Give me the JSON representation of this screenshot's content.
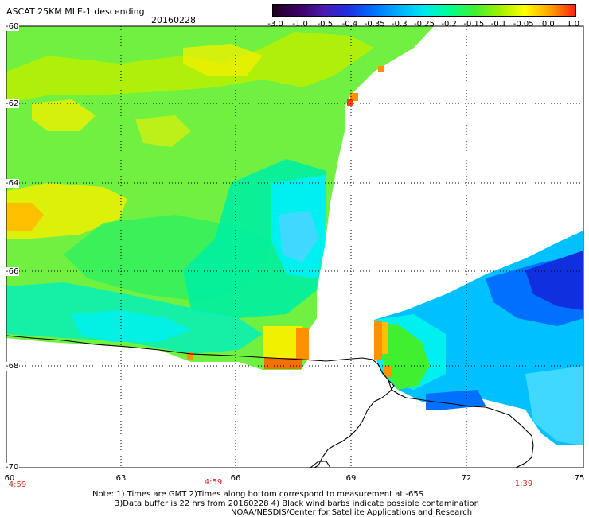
{
  "header": {
    "title": "ASCAT 25KM MLE-1 descending",
    "date": "20160228"
  },
  "colorbar": {
    "labels": [
      "-3.0",
      "-1.0",
      "-0.5",
      "-0.4",
      "-0.35",
      "-0.3",
      "-0.25",
      "-0.2",
      "-0.15",
      "-0.1",
      "-0.05",
      "0.0",
      "1.0"
    ],
    "colors": [
      "#200020",
      "#3a0060",
      "#4a1ab0",
      "#2030e0",
      "#0070ff",
      "#00b0ff",
      "#00e8f0",
      "#00ff90",
      "#40f030",
      "#a0f000",
      "#ffff00",
      "#ffa000",
      "#ff2010"
    ]
  },
  "axes": {
    "lat_labels": [
      "-60",
      "-62",
      "-64",
      "-66",
      "-68",
      "-70"
    ],
    "lon_labels": [
      "60",
      "63",
      "66",
      "69",
      "72",
      "75"
    ],
    "time_labels": [
      "4:59",
      "4:59",
      "1:39"
    ]
  },
  "notes": {
    "line1": "Note: 1) Times are GMT 2)Times along bottom correspond to measurement at -65S",
    "line2": "3)Data buffer is 22 hrs from 20160228 4) Black wind barbs indicate possible contamination",
    "line3": "NOAA/NESDIS/Center for Satellite Applications and Research"
  },
  "map_colors": {
    "yellow": "#f0f000",
    "yellow_green": "#b8f000",
    "green": "#70f040",
    "bright_green": "#30f060",
    "aqua_green": "#00f0a0",
    "cyan": "#00f0f0",
    "light_blue": "#00c0ff",
    "blue": "#0070ff",
    "dark_blue": "#1030e0",
    "orange": "#ff9000",
    "deep_orange": "#f07000",
    "red": "#ff4000"
  }
}
